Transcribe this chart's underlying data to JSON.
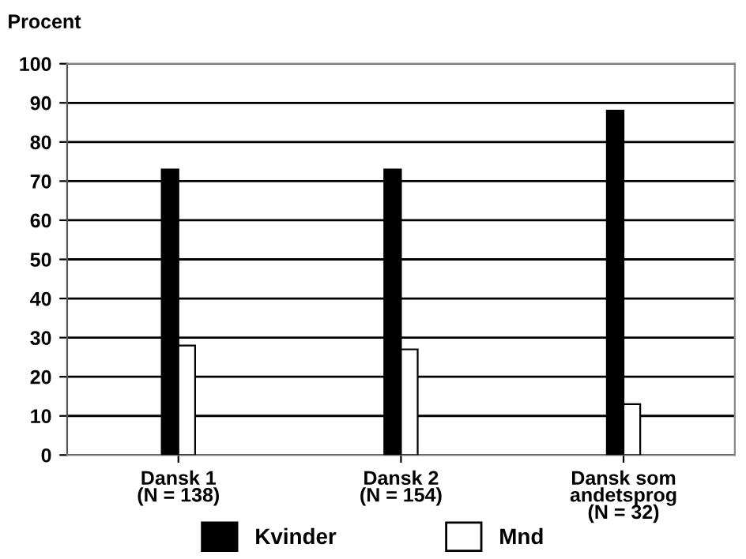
{
  "chart_data": {
    "type": "bar",
    "ylabel": "Procent",
    "categories": [
      "Dansk 1\n(N = 138)",
      "Dansk 2\n(N = 154)",
      "Dansk som\nandetsprog\n(N = 32)"
    ],
    "series": [
      {
        "name": "Kvinder",
        "color": "#000000",
        "values": [
          73,
          73,
          88
        ]
      },
      {
        "name": "Mnd",
        "color": "#ffffff",
        "values": [
          28,
          27,
          13
        ]
      }
    ],
    "ylim": [
      0,
      100
    ],
    "yticks": [
      0,
      10,
      20,
      30,
      40,
      50,
      60,
      70,
      80,
      90,
      100
    ],
    "grid": "y",
    "legend": "bottom"
  }
}
